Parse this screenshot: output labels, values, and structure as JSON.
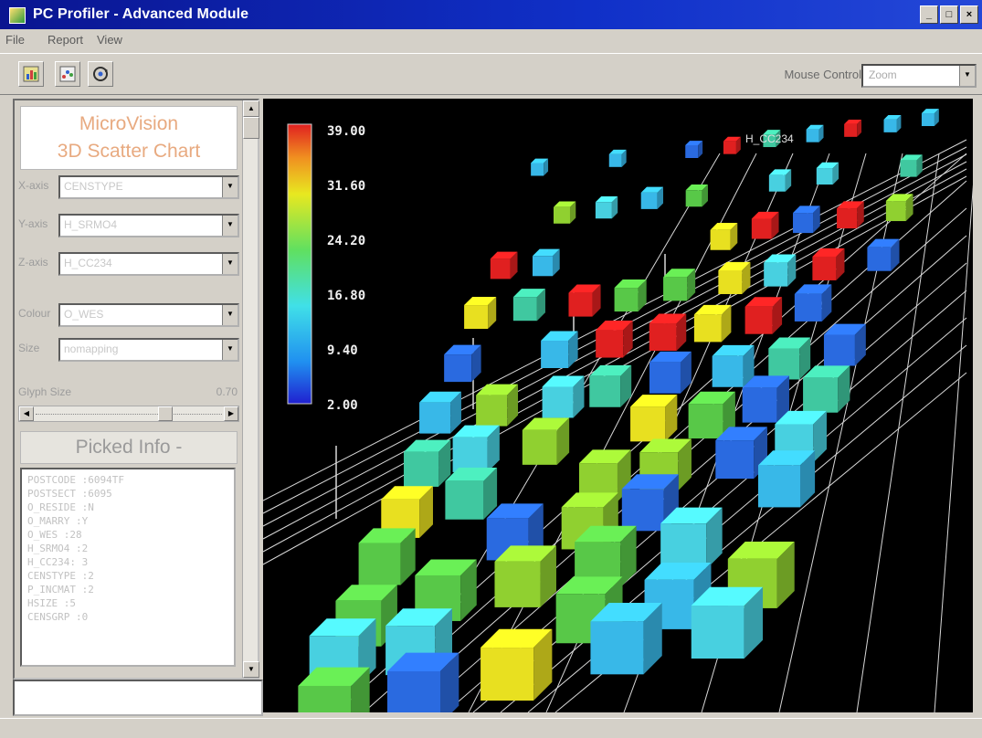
{
  "window": {
    "title": "PC Profiler - Advanced Module",
    "controls": [
      "_",
      "□",
      "×"
    ]
  },
  "menu": [
    "File",
    "Report",
    "View"
  ],
  "toolbar": {
    "buttons": [
      "chart-icon",
      "scatter-icon",
      "rotate-icon"
    ],
    "mouse_control_label": "Mouse Control",
    "mouse_control_value": "Zoom"
  },
  "left_panel": {
    "logo_line1": "MicroVision",
    "logo_line2": "3D Scatter Chart",
    "fields": [
      {
        "label": "X-axis",
        "value": "CENSTYPE"
      },
      {
        "label": "Y-axis",
        "value": "H_SRMO4"
      },
      {
        "label": "Z-axis",
        "value": "H_CC234"
      },
      {
        "label": "Colour",
        "value": "O_WES"
      },
      {
        "label": "Size",
        "value": "nomapping"
      }
    ],
    "glyph_size_label": "Glyph Size",
    "glyph_size_value": "0.70",
    "picked_info_title": "Picked Info -",
    "picked_info_lines": [
      "POSTCODE :6094TF",
      "POSTSECT :6095",
      "O_RESIDE :N",
      "O_MARRY :Y",
      "O_WES :28",
      "H_SRMO4 :2",
      "H_CC234: 3",
      "CENSTYPE :2",
      "P_INCMAT :2",
      "HSIZE :5",
      "CENSGRP :0"
    ]
  },
  "chart": {
    "colorbar_ticks": [
      "39.00",
      "31.60",
      "24.20",
      "16.80",
      "9.40",
      "2.00"
    ],
    "axis_labels": [
      "H_CC234"
    ],
    "colors": {
      "low": "#2040e0",
      "cyan": "#40d0e8",
      "green": "#40c040",
      "yellow": "#e8e020",
      "red": "#e02020"
    }
  }
}
